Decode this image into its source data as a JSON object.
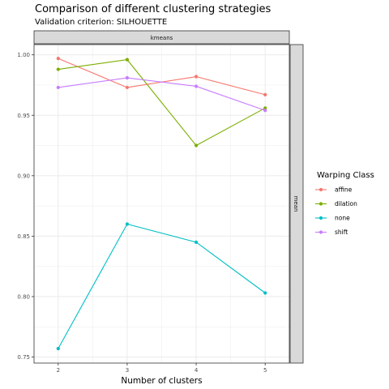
{
  "colors": {
    "affine": "#F8766D",
    "dilation": "#7CAE00",
    "none": "#00BFC4",
    "shift": "#C77CFF",
    "strip_fill": "#D9D9D9",
    "grid": "#EBEBEB"
  },
  "chart_data": {
    "type": "line",
    "title": "Comparison of different clustering strategies",
    "subtitle": "Validation criterion: SILHOUETTE",
    "facet_top": "kmeans",
    "facet_right": "mean",
    "xlabel": "Number of clusters",
    "ylabel": "",
    "x": [
      2,
      3,
      4,
      5
    ],
    "xlim": [
      1.65,
      5.35
    ],
    "ylim": [
      0.745,
      1.0085
    ],
    "xticks": [
      2,
      3,
      4,
      5
    ],
    "yticks": [
      0.75,
      0.8,
      0.85,
      0.9,
      0.95,
      1.0
    ],
    "ytick_labels": [
      "0.75",
      "0.80",
      "0.85",
      "0.90",
      "0.95",
      "1.00"
    ],
    "grid": true,
    "legend": {
      "title": "Warping Class",
      "placement": "right"
    },
    "series": [
      {
        "name": "affine",
        "color_key": "affine",
        "values": [
          0.997,
          0.973,
          0.982,
          0.967
        ]
      },
      {
        "name": "dilation",
        "color_key": "dilation",
        "values": [
          0.988,
          0.996,
          0.925,
          0.956
        ]
      },
      {
        "name": "none",
        "color_key": "none",
        "values": [
          0.757,
          0.86,
          0.845,
          0.803
        ]
      },
      {
        "name": "shift",
        "color_key": "shift",
        "values": [
          0.973,
          0.981,
          0.974,
          0.954
        ]
      }
    ]
  }
}
